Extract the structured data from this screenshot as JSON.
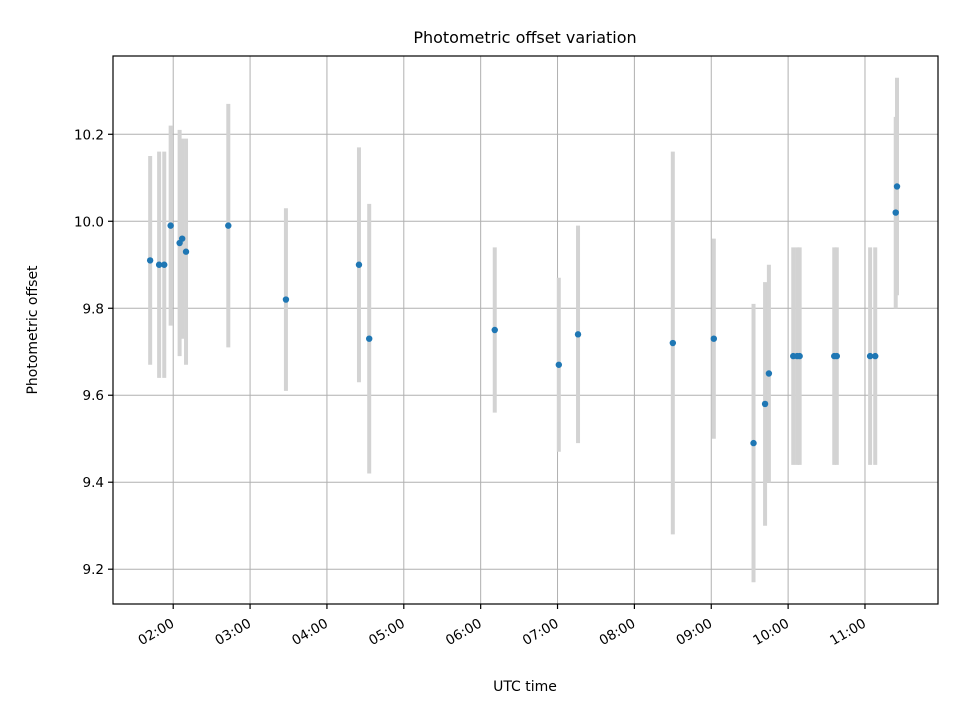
{
  "chart_data": {
    "type": "scatter",
    "title": "Photometric offset variation",
    "xlabel": "UTC time",
    "ylabel": "Photometric offset",
    "x_ticks": [
      "02:00",
      "03:00",
      "04:00",
      "05:00",
      "06:00",
      "07:00",
      "08:00",
      "09:00",
      "10:00",
      "11:00"
    ],
    "y_ticks": [
      "9.2",
      "9.4",
      "9.6",
      "9.8",
      "10.0",
      "10.2"
    ],
    "xlim": [
      "01:13",
      "11:57"
    ],
    "ylim": [
      9.12,
      10.38
    ],
    "grid": true,
    "point_color": "#1f77b4",
    "errorbar_color": "#d3d3d3",
    "points": [
      {
        "x": "01:42",
        "y": 9.91,
        "err": 0.24
      },
      {
        "x": "01:49",
        "y": 9.9,
        "err": 0.26
      },
      {
        "x": "01:53",
        "y": 9.9,
        "err": 0.26
      },
      {
        "x": "01:58",
        "y": 9.99,
        "err": 0.23
      },
      {
        "x": "02:05",
        "y": 9.95,
        "err": 0.26
      },
      {
        "x": "02:07",
        "y": 9.96,
        "err": 0.23
      },
      {
        "x": "02:10",
        "y": 9.93,
        "err": 0.26
      },
      {
        "x": "02:43",
        "y": 9.99,
        "err": 0.28
      },
      {
        "x": "03:28",
        "y": 9.82,
        "err": 0.21
      },
      {
        "x": "04:25",
        "y": 9.9,
        "err": 0.27
      },
      {
        "x": "04:33",
        "y": 9.73,
        "err": 0.31
      },
      {
        "x": "06:11",
        "y": 9.75,
        "err": 0.19
      },
      {
        "x": "07:01",
        "y": 9.67,
        "err": 0.2
      },
      {
        "x": "07:16",
        "y": 9.74,
        "err": 0.25
      },
      {
        "x": "08:30",
        "y": 9.72,
        "err": 0.44
      },
      {
        "x": "09:02",
        "y": 9.73,
        "err": 0.23
      },
      {
        "x": "09:33",
        "y": 9.49,
        "err": 0.32
      },
      {
        "x": "09:42",
        "y": 9.58,
        "err": 0.28
      },
      {
        "x": "09:45",
        "y": 9.65,
        "err": 0.25
      },
      {
        "x": "10:04",
        "y": 9.69,
        "err": 0.25
      },
      {
        "x": "10:07",
        "y": 9.69,
        "err": 0.25
      },
      {
        "x": "10:09",
        "y": 9.69,
        "err": 0.25
      },
      {
        "x": "10:36",
        "y": 9.69,
        "err": 0.25
      },
      {
        "x": "10:38",
        "y": 9.69,
        "err": 0.25
      },
      {
        "x": "11:04",
        "y": 9.69,
        "err": 0.25
      },
      {
        "x": "11:08",
        "y": 9.69,
        "err": 0.25
      },
      {
        "x": "11:24",
        "y": 10.02,
        "err": 0.22
      },
      {
        "x": "11:25",
        "y": 10.08,
        "err": 0.25
      }
    ]
  }
}
